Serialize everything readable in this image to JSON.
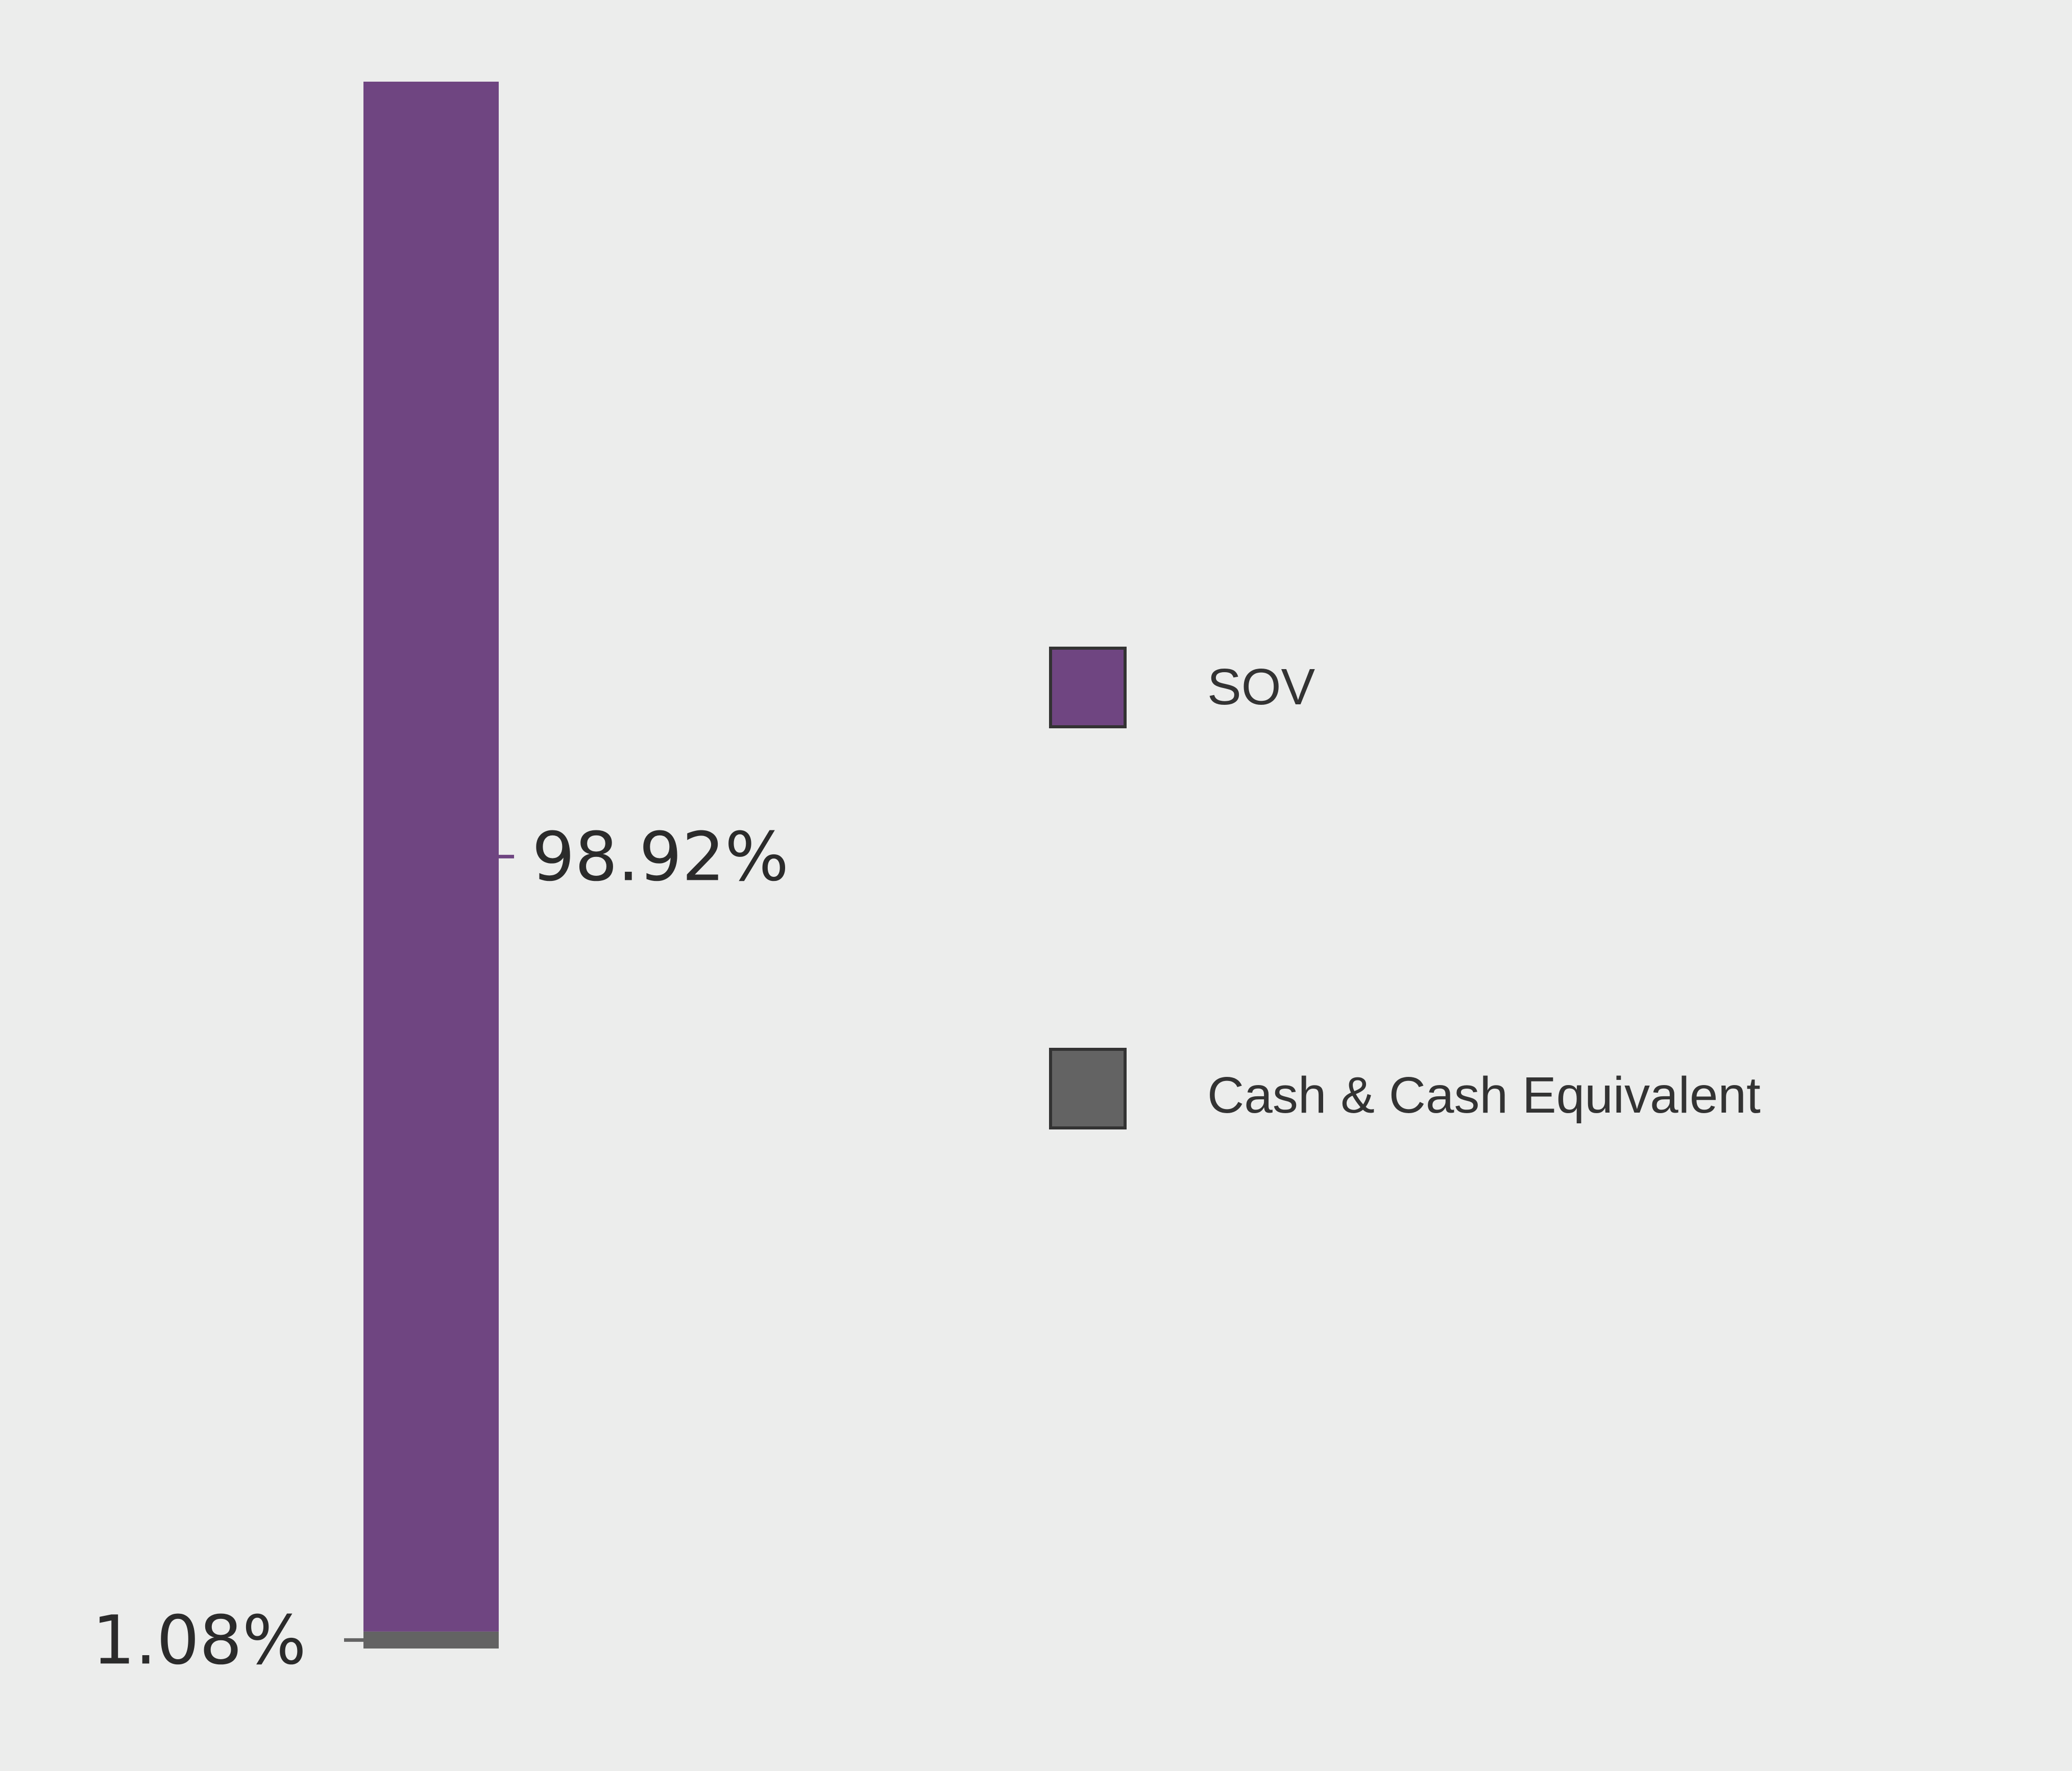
{
  "chart_data": {
    "type": "bar",
    "stacked": true,
    "orientation": "vertical",
    "unit": "%",
    "series": [
      {
        "name": "SOV",
        "value": 98.92,
        "label": "98.92%",
        "color": "#6f4581"
      },
      {
        "name": "Cash & Cash Equivalent",
        "value": 1.08,
        "label": "1.08%",
        "color": "#636363"
      }
    ],
    "legend": {
      "position": "right",
      "items": [
        "SOV",
        "Cash & Cash Equivalent"
      ]
    },
    "grid": false,
    "axes_visible": false
  }
}
